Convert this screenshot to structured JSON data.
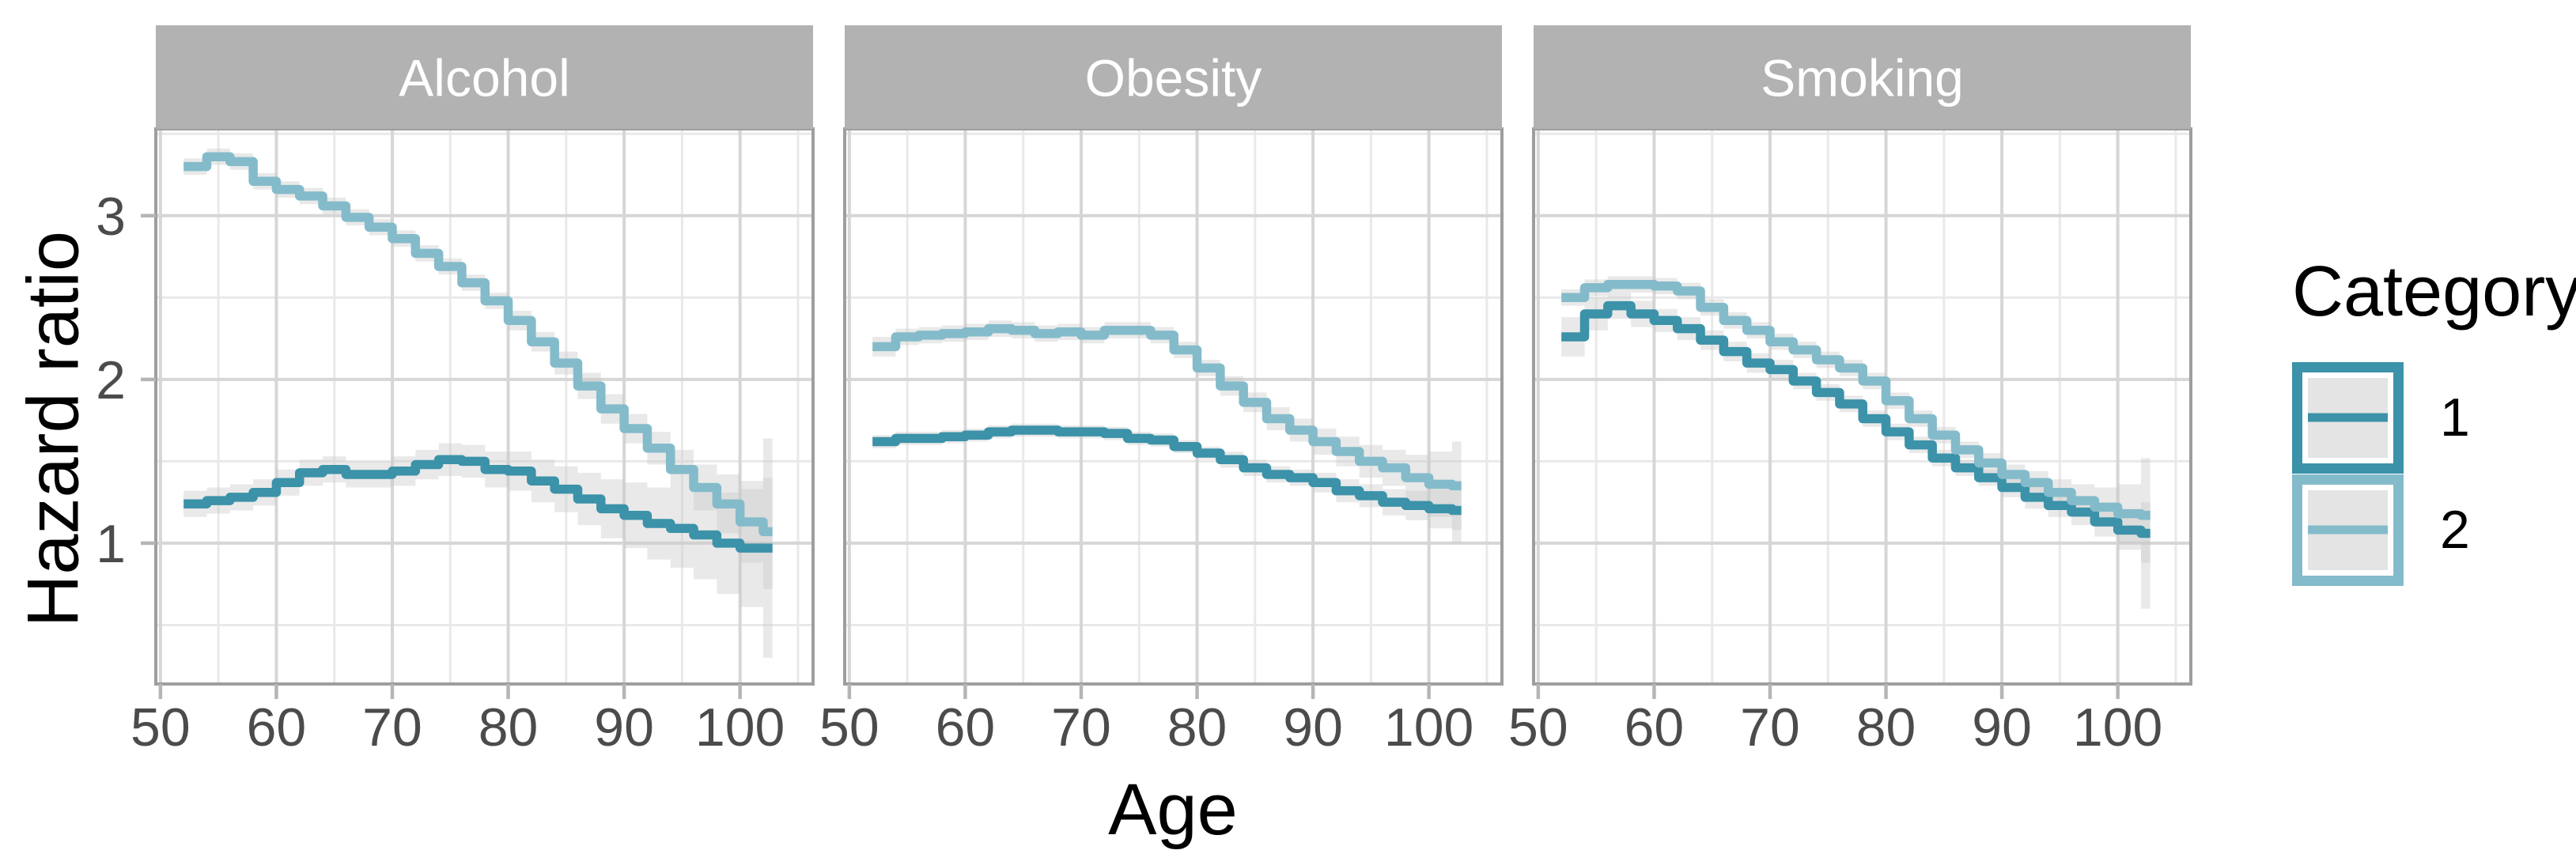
{
  "y_axis": {
    "title": "Hazard ratio",
    "tick_labels": [
      "3",
      "2",
      "1"
    ],
    "tick_values": [
      3,
      2,
      1
    ]
  },
  "x_axis": {
    "title": "Age",
    "tick_labels": [
      "50",
      "60",
      "70",
      "80",
      "90",
      "100"
    ],
    "tick_values": [
      50,
      60,
      70,
      80,
      90,
      100
    ]
  },
  "legend": {
    "title": "Category",
    "entries": [
      {
        "label": "1",
        "color": "#3b92a9"
      },
      {
        "label": "2",
        "color": "#84bbca"
      }
    ]
  },
  "style": {
    "strip_fill": "#b2b2b2",
    "strip_text_color": "#ffffff",
    "panel_border": "#9e9e9e",
    "grid_major": "#d6d6d6",
    "grid_minor": "#e9e9e9",
    "tick_color": "#b5b5b5",
    "tick_label_color": "#4b4b4b",
    "ribbon_color": "#c8c8c8",
    "background": "#ffffff",
    "category1_color": "#3b92a9",
    "category2_color": "#84bbca"
  },
  "chart_data": {
    "type": "line",
    "subtype": "step-lines-with-ci-ribbons",
    "title": "",
    "xlabel": "Age",
    "ylabel": "Hazard ratio",
    "legend_title": "Category",
    "legend_position": "right",
    "grid": true,
    "xlim": [
      49.6,
      106.3
    ],
    "ylim": [
      0.14,
      3.53
    ],
    "x_major_gridlines": [
      50,
      60,
      70,
      80,
      90,
      100
    ],
    "x_minor_gridlines": [
      55,
      65,
      75,
      85,
      95,
      105
    ],
    "y_major_gridlines": [
      1,
      2,
      3
    ],
    "y_minor_gridlines": [
      0.5,
      1.5,
      2.5,
      3.5
    ],
    "ages": [
      52,
      54,
      56,
      58,
      60,
      62,
      64,
      66,
      68,
      70,
      72,
      74,
      76,
      78,
      80,
      82,
      84,
      86,
      88,
      90,
      92,
      94,
      96,
      98,
      100,
      102
    ],
    "facets": [
      {
        "title": "Alcohol",
        "series": [
          {
            "name": "1",
            "color": "#3b92a9",
            "y": [
              1.24,
              1.26,
              1.28,
              1.31,
              1.37,
              1.43,
              1.45,
              1.42,
              1.42,
              1.44,
              1.48,
              1.51,
              1.5,
              1.45,
              1.44,
              1.38,
              1.33,
              1.27,
              1.21,
              1.17,
              1.12,
              1.09,
              1.05,
              1.0,
              0.97,
              0.97
            ],
            "hi": [
              1.32,
              1.34,
              1.36,
              1.39,
              1.45,
              1.51,
              1.53,
              1.5,
              1.5,
              1.53,
              1.57,
              1.61,
              1.6,
              1.56,
              1.56,
              1.51,
              1.47,
              1.43,
              1.39,
              1.37,
              1.34,
              1.33,
              1.32,
              1.31,
              1.33,
              1.4
            ],
            "lo": [
              1.16,
              1.18,
              1.2,
              1.23,
              1.29,
              1.35,
              1.37,
              1.34,
              1.34,
              1.35,
              1.39,
              1.41,
              1.4,
              1.34,
              1.32,
              1.25,
              1.19,
              1.11,
              1.03,
              0.97,
              0.9,
              0.85,
              0.78,
              0.69,
              0.61,
              0.3
            ]
          },
          {
            "name": "2",
            "color": "#84bbca",
            "y": [
              3.3,
              3.36,
              3.33,
              3.21,
              3.16,
              3.12,
              3.06,
              2.99,
              2.93,
              2.86,
              2.77,
              2.69,
              2.59,
              2.48,
              2.36,
              2.23,
              2.1,
              1.96,
              1.82,
              1.7,
              1.58,
              1.45,
              1.34,
              1.24,
              1.13,
              1.07
            ],
            "hi": [
              3.35,
              3.41,
              3.38,
              3.26,
              3.21,
              3.17,
              3.11,
              3.04,
              2.98,
              2.91,
              2.82,
              2.74,
              2.64,
              2.53,
              2.42,
              2.29,
              2.17,
              2.04,
              1.91,
              1.79,
              1.68,
              1.57,
              1.48,
              1.42,
              1.38,
              1.64
            ],
            "lo": [
              3.25,
              3.31,
              3.28,
              3.16,
              3.11,
              3.07,
              3.01,
              2.94,
              2.88,
              2.81,
              2.72,
              2.64,
              2.54,
              2.43,
              2.3,
              2.17,
              2.03,
              1.88,
              1.73,
              1.61,
              1.48,
              1.33,
              1.2,
              1.06,
              0.88,
              0.72
            ]
          }
        ]
      },
      {
        "title": "Obesity",
        "series": [
          {
            "name": "1",
            "color": "#3b92a9",
            "y": [
              1.62,
              1.64,
              1.64,
              1.65,
              1.66,
              1.68,
              1.69,
              1.69,
              1.68,
              1.68,
              1.67,
              1.64,
              1.63,
              1.59,
              1.55,
              1.51,
              1.46,
              1.42,
              1.4,
              1.37,
              1.32,
              1.29,
              1.25,
              1.23,
              1.21,
              1.2
            ],
            "hi": [
              1.66,
              1.68,
              1.68,
              1.69,
              1.7,
              1.72,
              1.73,
              1.73,
              1.72,
              1.72,
              1.71,
              1.68,
              1.67,
              1.63,
              1.59,
              1.56,
              1.51,
              1.47,
              1.45,
              1.43,
              1.39,
              1.36,
              1.33,
              1.32,
              1.33,
              1.38
            ],
            "lo": [
              1.58,
              1.6,
              1.6,
              1.61,
              1.62,
              1.64,
              1.65,
              1.65,
              1.64,
              1.64,
              1.63,
              1.6,
              1.59,
              1.55,
              1.51,
              1.46,
              1.41,
              1.37,
              1.35,
              1.31,
              1.25,
              1.22,
              1.17,
              1.14,
              1.09,
              1.0
            ]
          },
          {
            "name": "2",
            "color": "#84bbca",
            "y": [
              2.2,
              2.26,
              2.27,
              2.28,
              2.29,
              2.31,
              2.3,
              2.28,
              2.29,
              2.27,
              2.3,
              2.3,
              2.27,
              2.18,
              2.07,
              1.96,
              1.86,
              1.76,
              1.69,
              1.62,
              1.56,
              1.5,
              1.46,
              1.4,
              1.36,
              1.35
            ],
            "hi": [
              2.26,
              2.31,
              2.32,
              2.33,
              2.34,
              2.36,
              2.35,
              2.33,
              2.34,
              2.32,
              2.35,
              2.35,
              2.32,
              2.23,
              2.12,
              2.02,
              1.92,
              1.83,
              1.76,
              1.7,
              1.65,
              1.6,
              1.57,
              1.54,
              1.56,
              1.62
            ],
            "lo": [
              2.14,
              2.21,
              2.22,
              2.23,
              2.24,
              2.26,
              2.25,
              2.23,
              2.24,
              2.22,
              2.25,
              2.25,
              2.22,
              2.13,
              2.02,
              1.9,
              1.8,
              1.69,
              1.62,
              1.54,
              1.47,
              1.4,
              1.35,
              1.26,
              1.16,
              1.08
            ]
          }
        ]
      },
      {
        "title": "Smoking",
        "series": [
          {
            "name": "1",
            "color": "#3b92a9",
            "y": [
              2.26,
              2.4,
              2.45,
              2.4,
              2.36,
              2.31,
              2.24,
              2.17,
              2.1,
              2.06,
              1.99,
              1.92,
              1.85,
              1.76,
              1.68,
              1.6,
              1.52,
              1.46,
              1.4,
              1.34,
              1.28,
              1.23,
              1.19,
              1.13,
              1.08,
              1.06
            ],
            "hi": [
              2.38,
              2.5,
              2.53,
              2.48,
              2.43,
              2.38,
              2.3,
              2.23,
              2.16,
              2.12,
              2.04,
              1.97,
              1.9,
              1.81,
              1.73,
              1.65,
              1.57,
              1.51,
              1.45,
              1.4,
              1.35,
              1.3,
              1.27,
              1.22,
              1.2,
              1.25
            ],
            "lo": [
              2.14,
              2.3,
              2.37,
              2.32,
              2.29,
              2.24,
              2.18,
              2.11,
              2.04,
              2.0,
              1.94,
              1.87,
              1.8,
              1.71,
              1.63,
              1.55,
              1.47,
              1.41,
              1.35,
              1.28,
              1.21,
              1.16,
              1.11,
              1.04,
              0.96,
              0.6
            ]
          },
          {
            "name": "2",
            "color": "#84bbca",
            "y": [
              2.5,
              2.56,
              2.58,
              2.58,
              2.57,
              2.54,
              2.44,
              2.36,
              2.3,
              2.23,
              2.18,
              2.12,
              2.07,
              1.99,
              1.87,
              1.76,
              1.66,
              1.57,
              1.49,
              1.42,
              1.37,
              1.31,
              1.26,
              1.22,
              1.18,
              1.17
            ],
            "hi": [
              2.55,
              2.61,
              2.63,
              2.63,
              2.62,
              2.59,
              2.49,
              2.41,
              2.35,
              2.28,
              2.23,
              2.17,
              2.12,
              2.04,
              1.92,
              1.81,
              1.71,
              1.62,
              1.55,
              1.48,
              1.44,
              1.39,
              1.36,
              1.34,
              1.36,
              1.52
            ],
            "lo": [
              2.45,
              2.51,
              2.53,
              2.53,
              2.52,
              2.49,
              2.39,
              2.31,
              2.25,
              2.18,
              2.13,
              2.07,
              2.02,
              1.94,
              1.82,
              1.71,
              1.61,
              1.52,
              1.43,
              1.36,
              1.3,
              1.23,
              1.16,
              1.1,
              1.0,
              0.88
            ]
          }
        ]
      }
    ]
  }
}
